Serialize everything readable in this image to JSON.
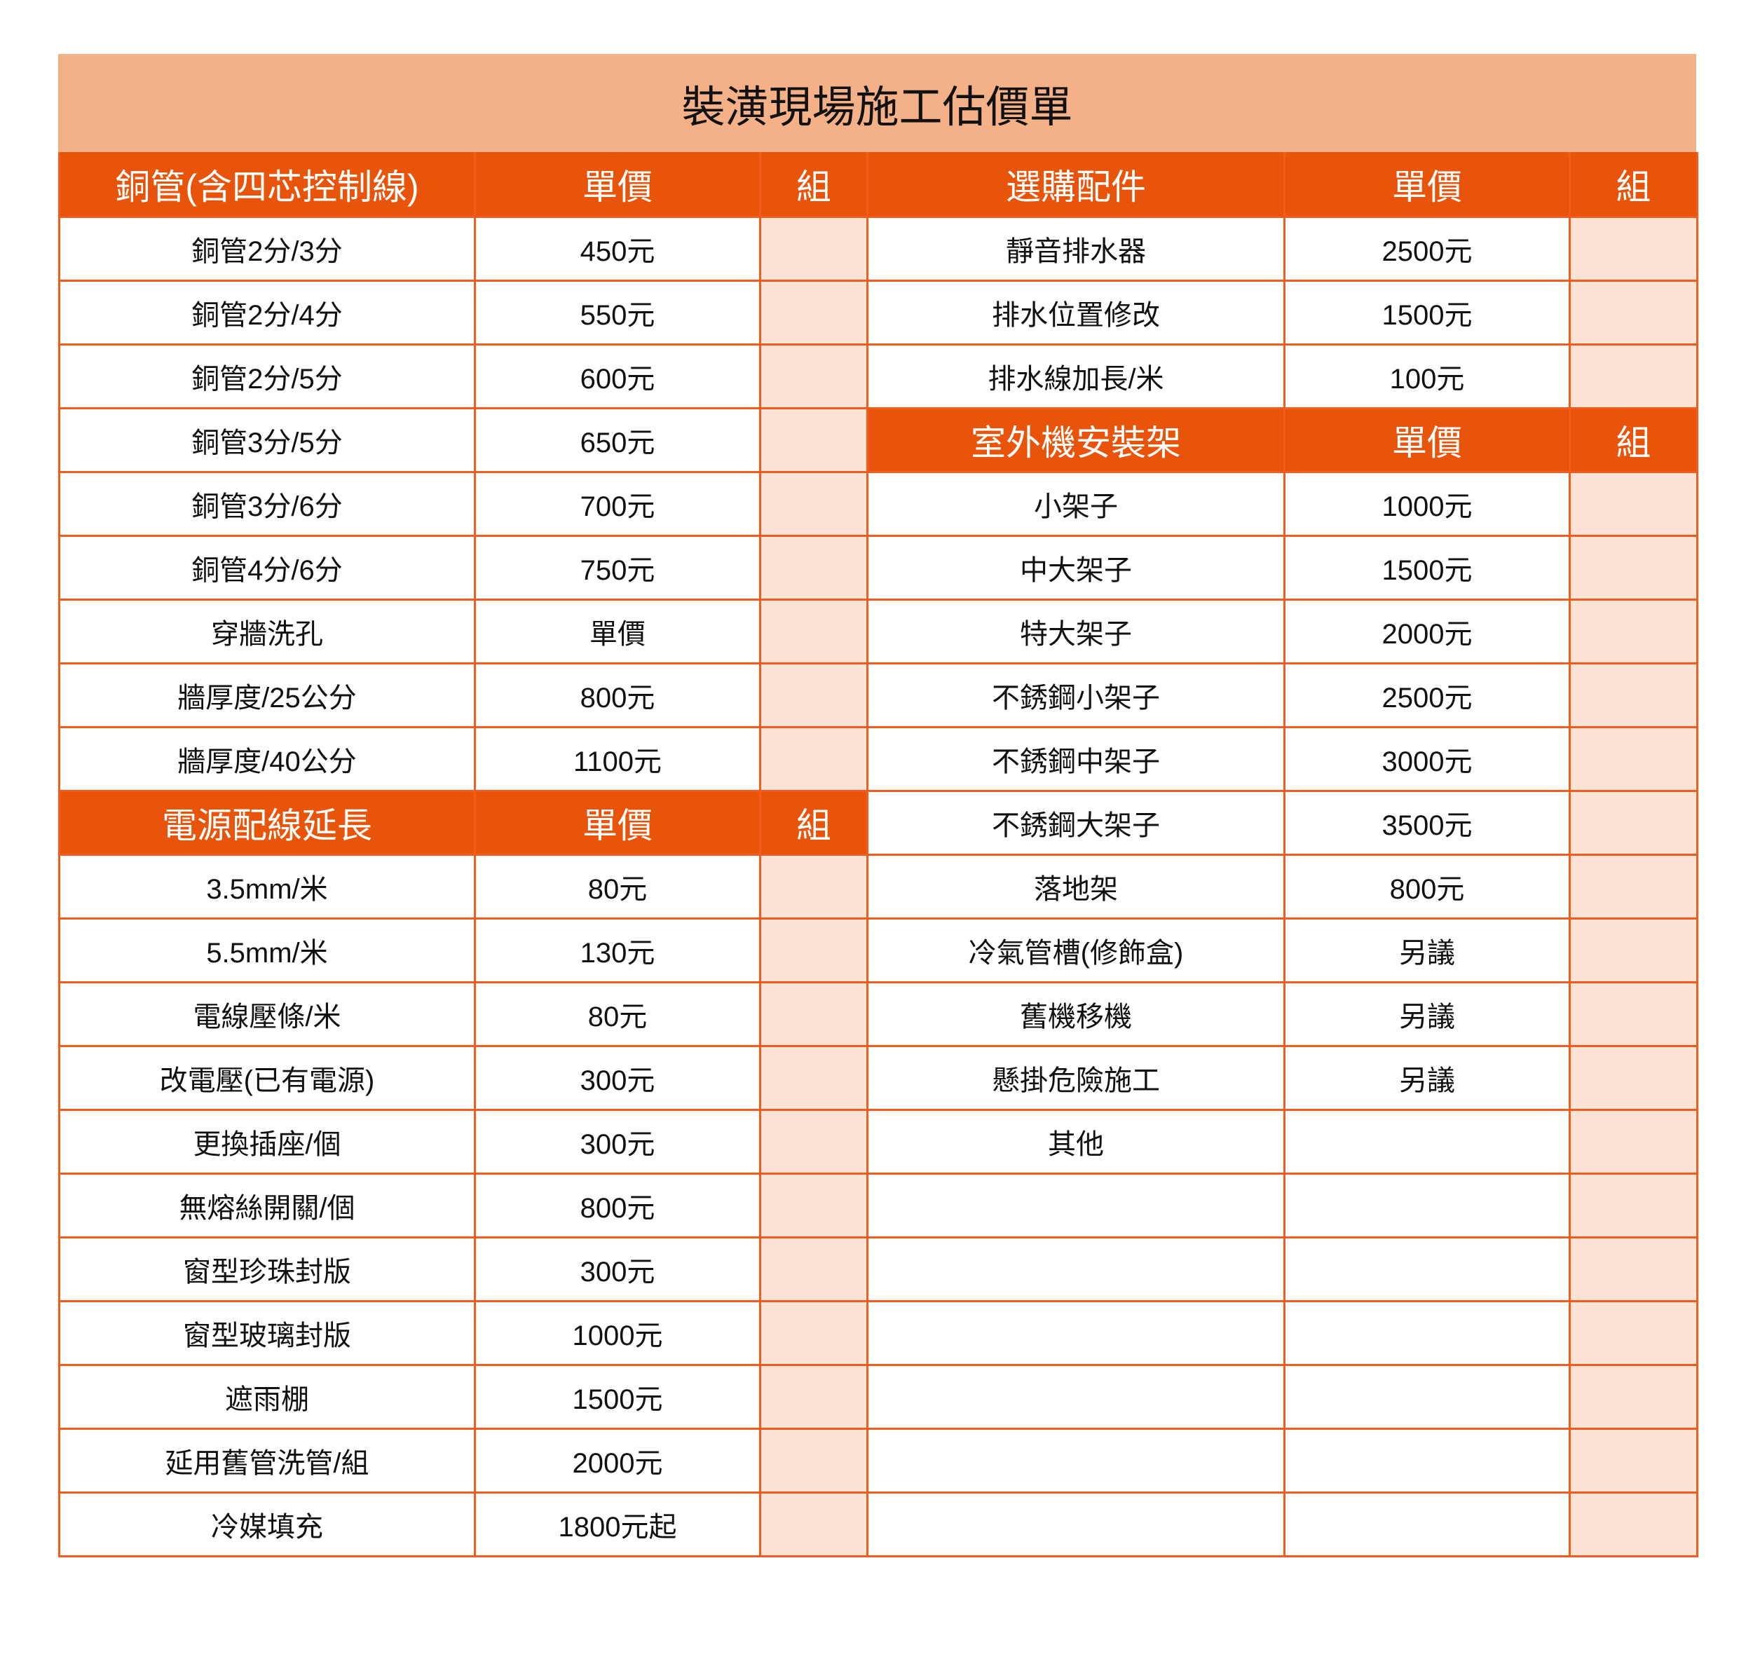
{
  "title": "裝潢現場施工估價單",
  "colors": {
    "title_bg": "#F4B086",
    "header_bg": "#E8550A",
    "border": "#F25C1E",
    "qty_bg": "#FBE3D5"
  },
  "left": [
    {
      "header": true,
      "item": "銅管(含四芯控制線)",
      "price": "單價",
      "qty": "組"
    },
    {
      "item": "銅管2分/3分",
      "price": "450元"
    },
    {
      "item": "銅管2分/4分",
      "price": "550元"
    },
    {
      "item": "銅管2分/5分",
      "price": "600元"
    },
    {
      "item": "銅管3分/5分",
      "price": "650元"
    },
    {
      "item": "銅管3分/6分",
      "price": "700元"
    },
    {
      "item": "銅管4分/6分",
      "price": "750元"
    },
    {
      "item": "穿牆洗孔",
      "price": "單價"
    },
    {
      "item": "牆厚度/25公分",
      "price": "800元"
    },
    {
      "item": "牆厚度/40公分",
      "price": "1100元"
    },
    {
      "header": true,
      "item": "電源配線延長",
      "price": "單價",
      "qty": "組"
    },
    {
      "item": "3.5mm/米",
      "price": "80元"
    },
    {
      "item": "5.5mm/米",
      "price": "130元"
    },
    {
      "item": "電線壓條/米",
      "price": "80元"
    },
    {
      "item": "改電壓(已有電源)",
      "price": "300元"
    },
    {
      "item": "更換插座/個",
      "price": "300元"
    },
    {
      "item": "無熔絲開關/個",
      "price": "800元"
    },
    {
      "item": "窗型珍珠封版",
      "price": "300元"
    },
    {
      "item": "窗型玻璃封版",
      "price": "1000元"
    },
    {
      "item": "遮雨棚",
      "price": "1500元"
    },
    {
      "item": "延用舊管洗管/組",
      "price": "2000元"
    },
    {
      "item": "冷媒填充",
      "price": "1800元起"
    }
  ],
  "right": [
    {
      "header": true,
      "item": "選購配件",
      "price": "單價",
      "qty": "組"
    },
    {
      "item": "靜音排水器",
      "price": "2500元"
    },
    {
      "item": "排水位置修改",
      "price": "1500元"
    },
    {
      "item": "排水線加長/米",
      "price": "100元"
    },
    {
      "header": true,
      "item": "室外機安裝架",
      "price": "單價",
      "qty": "組"
    },
    {
      "item": "小架子",
      "price": "1000元"
    },
    {
      "item": "中大架子",
      "price": "1500元"
    },
    {
      "item": "特大架子",
      "price": "2000元"
    },
    {
      "item": "不銹鋼小架子",
      "price": "2500元"
    },
    {
      "item": "不銹鋼中架子",
      "price": "3000元"
    },
    {
      "item": "不銹鋼大架子",
      "price": "3500元"
    },
    {
      "item": "落地架",
      "price": "800元"
    },
    {
      "item": "冷氣管槽(修飾盒)",
      "price": "另議"
    },
    {
      "item": "舊機移機",
      "price": "另議"
    },
    {
      "item": "懸掛危險施工",
      "price": "另議"
    },
    {
      "item": "其他",
      "price": ""
    },
    {
      "item": "",
      "price": ""
    },
    {
      "item": "",
      "price": ""
    },
    {
      "item": "",
      "price": ""
    },
    {
      "item": "",
      "price": ""
    },
    {
      "item": "",
      "price": ""
    },
    {
      "item": "",
      "price": ""
    }
  ]
}
